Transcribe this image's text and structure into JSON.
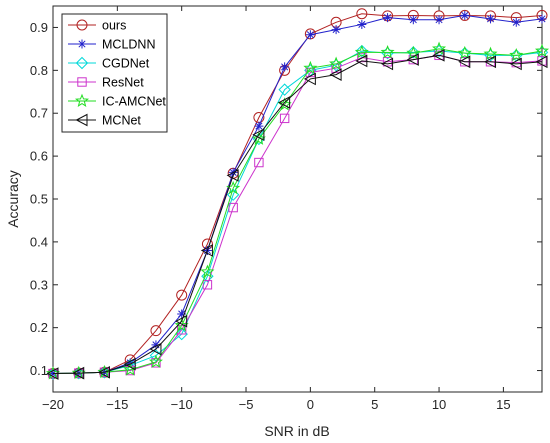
{
  "chart_data": {
    "type": "line",
    "title": "",
    "xlabel": "SNR in dB",
    "ylabel": "Accuracy",
    "xlim": [
      -20,
      18
    ],
    "ylim": [
      0.05,
      0.95
    ],
    "xticks": [
      -20,
      -15,
      -10,
      -5,
      0,
      5,
      10,
      15
    ],
    "yticks": [
      0.1,
      0.2,
      0.3,
      0.4,
      0.5,
      0.6,
      0.7,
      0.8,
      0.9
    ],
    "grid": false,
    "legend_position": "top-left",
    "x": [
      -20,
      -18,
      -16,
      -14,
      -12,
      -10,
      -8,
      -6,
      -4,
      -2,
      0,
      2,
      4,
      6,
      8,
      10,
      12,
      14,
      16,
      18
    ],
    "series": [
      {
        "name": "ours",
        "color": "#b22222",
        "marker": "circle",
        "values": [
          0.093,
          0.094,
          0.096,
          0.125,
          0.193,
          0.276,
          0.395,
          0.56,
          0.69,
          0.8,
          0.885,
          0.912,
          0.932,
          0.927,
          0.928,
          0.927,
          0.928,
          0.927,
          0.923,
          0.928
        ]
      },
      {
        "name": "MCLDNN",
        "color": "#2222cc",
        "marker": "asterisk",
        "values": [
          0.093,
          0.094,
          0.096,
          0.118,
          0.16,
          0.232,
          0.38,
          0.562,
          0.67,
          0.808,
          0.883,
          0.895,
          0.907,
          0.923,
          0.918,
          0.918,
          0.928,
          0.92,
          0.912,
          0.92
        ]
      },
      {
        "name": "CGDNet",
        "color": "#00d8d8",
        "marker": "diamond",
        "values": [
          0.093,
          0.094,
          0.096,
          0.112,
          0.135,
          0.185,
          0.32,
          0.51,
          0.64,
          0.755,
          0.8,
          0.812,
          0.845,
          0.84,
          0.842,
          0.845,
          0.84,
          0.835,
          0.835,
          0.842
        ]
      },
      {
        "name": "ResNet",
        "color": "#cc33cc",
        "marker": "square",
        "values": [
          0.093,
          0.094,
          0.096,
          0.1,
          0.118,
          0.195,
          0.3,
          0.48,
          0.585,
          0.688,
          0.795,
          0.805,
          0.83,
          0.82,
          0.825,
          0.835,
          0.82,
          0.82,
          0.818,
          0.822
        ]
      },
      {
        "name": "IC-AMCNet",
        "color": "#22dd22",
        "marker": "pentagram",
        "values": [
          0.093,
          0.094,
          0.096,
          0.102,
          0.12,
          0.205,
          0.33,
          0.525,
          0.64,
          0.72,
          0.805,
          0.815,
          0.842,
          0.842,
          0.84,
          0.85,
          0.84,
          0.838,
          0.835,
          0.845
        ]
      },
      {
        "name": "MCNet",
        "color": "#111111",
        "marker": "triangle-left",
        "values": [
          0.093,
          0.094,
          0.096,
          0.115,
          0.15,
          0.215,
          0.38,
          0.555,
          0.65,
          0.725,
          0.78,
          0.79,
          0.822,
          0.815,
          0.825,
          0.835,
          0.82,
          0.82,
          0.815,
          0.82
        ]
      }
    ]
  }
}
